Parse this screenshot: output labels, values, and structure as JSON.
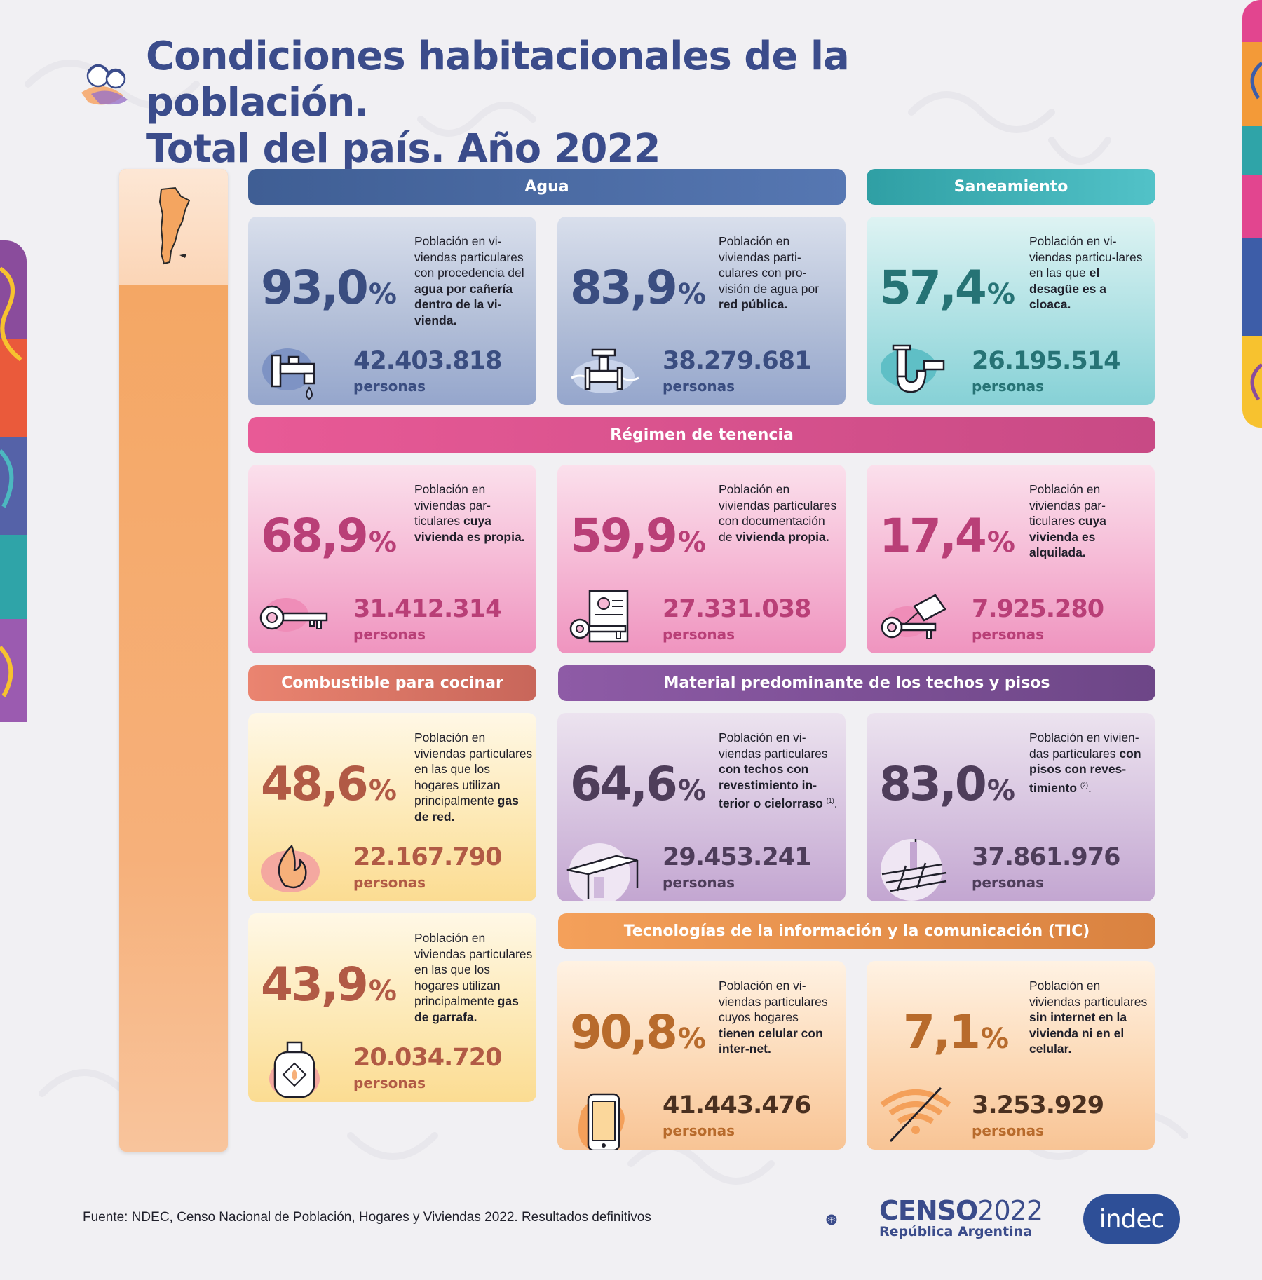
{
  "title": {
    "line1": "Condiciones habitacionales de la población.",
    "line2": "Total del país. Año 2022"
  },
  "colors": {
    "title": "#3b4c8b",
    "agua": "#4b6ba8",
    "saneamiento": "#3ab2b8",
    "tenencia": "#d84f8f",
    "combustible": "#e0735e",
    "material": "#7d4f96",
    "tic": "#f0934e"
  },
  "sections": {
    "agua": "Agua",
    "saneamiento": "Saneamiento",
    "tenencia": "Régimen de tenencia",
    "combustible": "Combustible para cocinar",
    "material": "Material predominante de los techos y pisos",
    "tic": "Tecnologías de la información y la comunicación (TIC)"
  },
  "cards": {
    "agua1": {
      "pct": "93,0",
      "sym": "%",
      "desc_pre": "Población en vi-viendas particulares con procedencia del ",
      "desc_bold": "agua por cañería dentro de la vi-vienda.",
      "desc_post": "",
      "num": "42.403.818",
      "unit": "personas",
      "icon": "faucet-icon"
    },
    "agua2": {
      "pct": "83,9",
      "sym": "%",
      "desc_pre": "Población en viviendas parti-culares con pro-visión de agua por ",
      "desc_bold": "red pública.",
      "desc_post": "",
      "num": "38.279.681",
      "unit": "personas",
      "icon": "water-tap-network-icon"
    },
    "san1": {
      "pct": "57,4",
      "sym": "%",
      "desc_pre": "Población en vi-viendas particu-lares en las que ",
      "desc_bold": "el desagüe es a cloaca.",
      "desc_post": "",
      "num": "26.195.514",
      "unit": "personas",
      "icon": "drain-pipe-icon"
    },
    "ten1": {
      "pct": "68,9",
      "sym": "%",
      "desc_pre": "Población en viviendas par-ticulares ",
      "desc_bold": "cuya vivienda es propia.",
      "desc_post": "",
      "num": "31.412.314",
      "unit": "personas",
      "icon": "key-icon"
    },
    "ten2": {
      "pct": "59,9",
      "sym": "%",
      "desc_pre": "Población en viviendas particulares con documentación de ",
      "desc_bold": "vivienda propia.",
      "desc_post": "",
      "num": "27.331.038",
      "unit": "personas",
      "icon": "deed-key-icon"
    },
    "ten3": {
      "pct": "17,4",
      "sym": "%",
      "desc_pre": "Población en viviendas par-ticulares ",
      "desc_bold": "cuya vivienda es alquilada.",
      "desc_post": "",
      "num": "7.925.280",
      "unit": "personas",
      "icon": "key-tag-icon"
    },
    "comb1": {
      "pct": "48,6",
      "sym": "%",
      "desc_pre": "Población en viviendas particulares en las que los hogares utilizan principalmente ",
      "desc_bold": "gas de red.",
      "desc_post": "",
      "num": "22.167.790",
      "unit": "personas",
      "icon": "flame-icon"
    },
    "comb2": {
      "pct": "43,9",
      "sym": "%",
      "desc_pre": "Población en viviendas particulares en las que los hogares utilizan principalmente ",
      "desc_bold": "gas de garrafa.",
      "desc_post": "",
      "num": "20.034.720",
      "unit": "personas",
      "icon": "gas-cylinder-icon"
    },
    "mat1": {
      "pct": "64,6",
      "sym": "%",
      "desc_pre": "Población en vi-viendas particulares ",
      "desc_bold": "con techos con revestimiento in-terior o cielorraso",
      "desc_sup": "(1)",
      "desc_post": ".",
      "num": "29.453.241",
      "unit": "personas",
      "icon": "ceiling-icon"
    },
    "mat2": {
      "pct": "83,0",
      "sym": "%",
      "desc_pre": "Población en vivien-das particulares ",
      "desc_bold": "con pisos con reves-timiento",
      "desc_sup": "(2)",
      "desc_post": ".",
      "num": "37.861.976",
      "unit": "personas",
      "icon": "floor-tiles-icon"
    },
    "tic1": {
      "pct": "90,8",
      "sym": "%",
      "desc_pre": "Población en vi-viendas particulares cuyos hogares ",
      "desc_bold": "tienen celular con inter-net.",
      "desc_post": "",
      "num": "41.443.476",
      "unit": "personas",
      "icon": "smartphone-icon"
    },
    "tic2": {
      "pct": "7,1",
      "sym": "%",
      "desc_pre": "Población en viviendas particulares ",
      "desc_bold": "sin internet en la vivienda ni en el celular.",
      "desc_post": "",
      "num": "3.253.929",
      "unit": "personas",
      "icon": "no-wifi-icon"
    }
  },
  "footer": {
    "source": "Fuente: NDEC, Censo Nacional de Población, Hogares y Viviendas 2022. Resultados definitivos",
    "censo_word": "CENSO",
    "censo_year": "2022",
    "censo_sub": "República Argentina",
    "indec": "indec"
  }
}
